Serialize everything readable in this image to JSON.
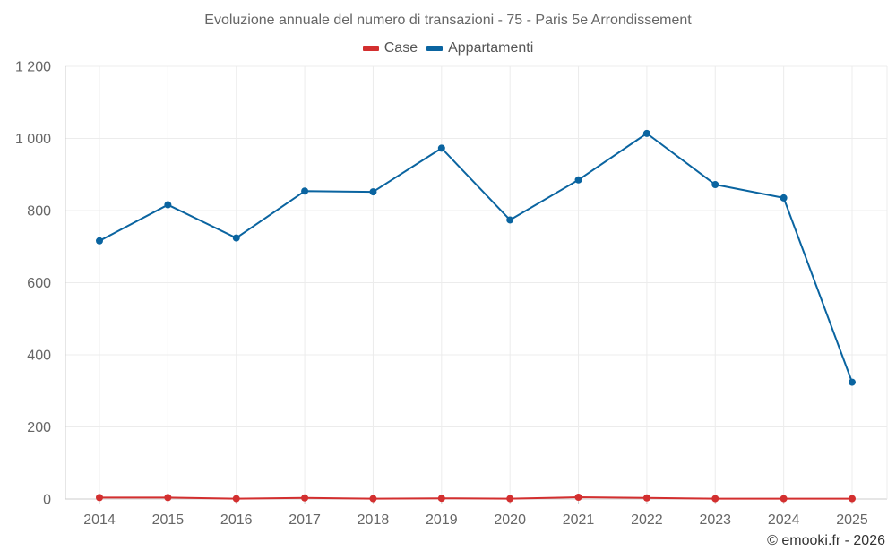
{
  "chart_data": {
    "type": "line",
    "title": "Evoluzione annuale del numero di transazioni - 75 - Paris 5e Arrondissement",
    "xlabel": "",
    "ylabel": "",
    "categories": [
      "2014",
      "2015",
      "2016",
      "2017",
      "2018",
      "2019",
      "2020",
      "2021",
      "2022",
      "2023",
      "2024",
      "2025"
    ],
    "ylim": [
      0,
      1200
    ],
    "yticks": [
      0,
      200,
      400,
      600,
      800,
      1000,
      1200
    ],
    "ytick_labels": [
      "0",
      "200",
      "400",
      "600",
      "800",
      "1 000",
      "1 200"
    ],
    "grid": true,
    "legend_position": "top-center",
    "series": [
      {
        "name": "Case",
        "color": "#d32f2f",
        "values": [
          4,
          4,
          1,
          3,
          1,
          2,
          1,
          5,
          3,
          1,
          1,
          1
        ]
      },
      {
        "name": "Appartamenti",
        "color": "#0a64a0",
        "values": [
          716,
          816,
          724,
          854,
          852,
          973,
          774,
          885,
          1014,
          872,
          835,
          324
        ]
      }
    ]
  },
  "credit": "© emooki.fr - 2026"
}
